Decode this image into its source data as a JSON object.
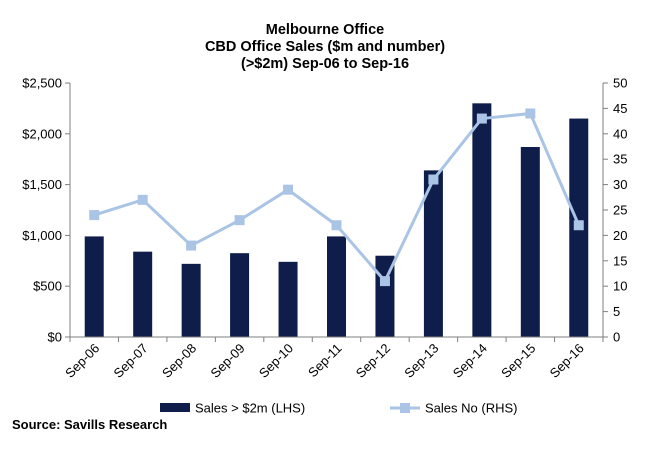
{
  "title_lines": [
    "Melbourne Office",
    "CBD Office Sales ($m and number)",
    "(>$2m) Sep-06 to Sep-16"
  ],
  "source": "Source: Savills Research",
  "chart_data": {
    "type": "bar",
    "title": "Melbourne Office CBD Office Sales ($m and number) (>$2m) Sep-06 to Sep-16",
    "categories": [
      "Sep-06",
      "Sep-07",
      "Sep-08",
      "Sep-09",
      "Sep-10",
      "Sep-11",
      "Sep-12",
      "Sep-13",
      "Sep-14",
      "Sep-15",
      "Sep-16"
    ],
    "series": [
      {
        "name": "Sales > $2m (LHS)",
        "type": "bar",
        "axis": "left",
        "color": "#0f1d4a",
        "values": [
          990,
          840,
          720,
          825,
          740,
          990,
          800,
          1640,
          2300,
          1870,
          2150
        ]
      },
      {
        "name": "Sales No (RHS)",
        "type": "line",
        "axis": "right",
        "color": "#a9c4e4",
        "values": [
          24,
          27,
          18,
          23,
          29,
          22,
          11,
          31,
          43,
          44,
          22
        ]
      }
    ],
    "y_left": {
      "ylim": [
        0,
        2500
      ],
      "ticks": [
        0,
        500,
        1000,
        1500,
        2000,
        2500
      ],
      "tick_labels": [
        "$0",
        "$500",
        "$1,000",
        "$1,500",
        "$2,000",
        "$2,500"
      ]
    },
    "y_right": {
      "ylim": [
        0,
        50
      ],
      "ticks": [
        0,
        5,
        10,
        15,
        20,
        25,
        30,
        35,
        40,
        45,
        50
      ],
      "tick_labels": [
        "0",
        "5",
        "10",
        "15",
        "20",
        "25",
        "30",
        "35",
        "40",
        "45",
        "50"
      ]
    },
    "grid": false,
    "legend": "bottom"
  }
}
